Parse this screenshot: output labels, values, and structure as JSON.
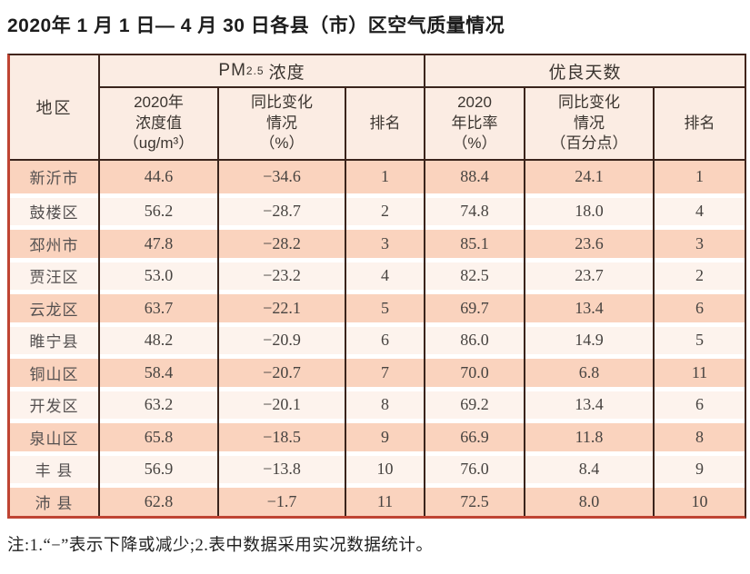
{
  "title": "2020年 1 月 1 日— 4 月 30 日各县（市）区空气质量情况",
  "table": {
    "region_header": "地区",
    "pm_group": {
      "prefix": "PM",
      "sub": "2.5",
      "suffix": "浓度"
    },
    "good_group": "优良天数",
    "sub_headers": [
      "2020年\n浓度值\n（ug/m³）",
      "同比变化\n情况\n（%）",
      "排名",
      "2020\n年比率\n（%）",
      "同比变化\n情况\n（百分点）",
      "排名"
    ],
    "rows": [
      {
        "region": "新沂市",
        "pm_value": "44.6",
        "pm_change": "−34.6",
        "pm_rank": "1",
        "good_ratio": "88.4",
        "good_change": "24.1",
        "good_rank": "1"
      },
      {
        "region": "鼓楼区",
        "pm_value": "56.2",
        "pm_change": "−28.7",
        "pm_rank": "2",
        "good_ratio": "74.8",
        "good_change": "18.0",
        "good_rank": "4"
      },
      {
        "region": "邳州市",
        "pm_value": "47.8",
        "pm_change": "−28.2",
        "pm_rank": "3",
        "good_ratio": "85.1",
        "good_change": "23.6",
        "good_rank": "3"
      },
      {
        "region": "贾汪区",
        "pm_value": "53.0",
        "pm_change": "−23.2",
        "pm_rank": "4",
        "good_ratio": "82.5",
        "good_change": "23.7",
        "good_rank": "2"
      },
      {
        "region": "云龙区",
        "pm_value": "63.7",
        "pm_change": "−22.1",
        "pm_rank": "5",
        "good_ratio": "69.7",
        "good_change": "13.4",
        "good_rank": "6"
      },
      {
        "region": "睢宁县",
        "pm_value": "48.2",
        "pm_change": "−20.9",
        "pm_rank": "6",
        "good_ratio": "86.0",
        "good_change": "14.9",
        "good_rank": "5"
      },
      {
        "region": "铜山区",
        "pm_value": "58.4",
        "pm_change": "−20.7",
        "pm_rank": "7",
        "good_ratio": "70.0",
        "good_change": "6.8",
        "good_rank": "11"
      },
      {
        "region": "开发区",
        "pm_value": "63.2",
        "pm_change": "−20.1",
        "pm_rank": "8",
        "good_ratio": "69.2",
        "good_change": "13.4",
        "good_rank": "6"
      },
      {
        "region": "泉山区",
        "pm_value": "65.8",
        "pm_change": "−18.5",
        "pm_rank": "9",
        "good_ratio": "66.9",
        "good_change": "11.8",
        "good_rank": "8"
      },
      {
        "region": "丰 县",
        "pm_value": "56.9",
        "pm_change": "−13.8",
        "pm_rank": "10",
        "good_ratio": "76.0",
        "good_change": "8.4",
        "good_rank": "9"
      },
      {
        "region": "沛 县",
        "pm_value": "62.8",
        "pm_change": "−1.7",
        "pm_rank": "11",
        "good_ratio": "72.5",
        "good_change": "8.0",
        "good_rank": "10"
      }
    ]
  },
  "note": "注:1.“−”表示下降或减少;2.表中数据采用实况数据统计。",
  "colors": {
    "row_salmon": "#fad3be",
    "row_light": "#fdf3ed",
    "header_bg": "#fbece3",
    "inner_rule": "#3a241c",
    "outer_border_red": "#bf4433",
    "outer_border_dark": "#41251c"
  },
  "chart_data": {
    "type": "table",
    "title": "2020年 1 月 1 日— 4 月 30 日各县（市）区空气质量情况",
    "column_groups": [
      "PM2.5浓度",
      "优良天数"
    ],
    "columns": [
      "地区",
      "2020年浓度值（ug/m³）",
      "PM2.5同比变化情况（%）",
      "PM2.5排名",
      "2020年比率（%）",
      "优良天数同比变化情况（百分点）",
      "优良天数排名"
    ],
    "rows": [
      [
        "新沂市",
        44.6,
        -34.6,
        1,
        88.4,
        24.1,
        1
      ],
      [
        "鼓楼区",
        56.2,
        -28.7,
        2,
        74.8,
        18.0,
        4
      ],
      [
        "邳州市",
        47.8,
        -28.2,
        3,
        85.1,
        23.6,
        3
      ],
      [
        "贾汪区",
        53.0,
        -23.2,
        4,
        82.5,
        23.7,
        2
      ],
      [
        "云龙区",
        63.7,
        -22.1,
        5,
        69.7,
        13.4,
        6
      ],
      [
        "睢宁县",
        48.2,
        -20.9,
        6,
        86.0,
        14.9,
        5
      ],
      [
        "铜山区",
        58.4,
        -20.7,
        7,
        70.0,
        6.8,
        11
      ],
      [
        "开发区",
        63.2,
        -20.1,
        8,
        69.2,
        13.4,
        6
      ],
      [
        "泉山区",
        65.8,
        -18.5,
        9,
        66.9,
        11.8,
        8
      ],
      [
        "丰 县",
        56.9,
        -13.8,
        10,
        76.0,
        8.4,
        9
      ],
      [
        "沛 县",
        62.8,
        -1.7,
        11,
        72.5,
        8.0,
        10
      ]
    ],
    "footnote": "注:1.“−”表示下降或减少;2.表中数据采用实况数据统计。"
  }
}
